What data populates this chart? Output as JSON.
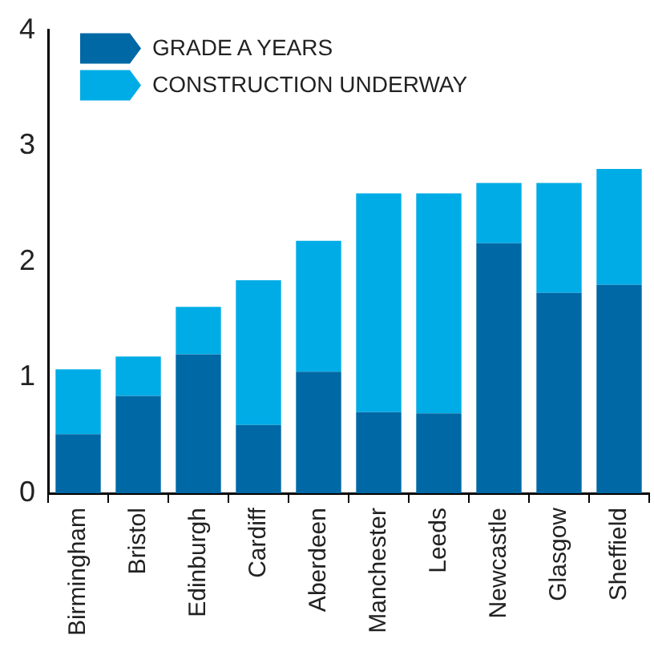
{
  "chart_data": {
    "type": "bar",
    "stacked": true,
    "categories": [
      "Birmingham",
      "Bristol",
      "Edinburgh",
      "Cardiff",
      "Aberdeen",
      "Manchester",
      "Leeds",
      "Newcastle",
      "Glasgow",
      "Sheffield"
    ],
    "series": [
      {
        "name": "GRADE A YEARS",
        "color": "#0068a5",
        "values": [
          0.51,
          0.84,
          1.2,
          0.59,
          1.05,
          0.7,
          0.69,
          2.16,
          1.73,
          1.8
        ]
      },
      {
        "name": "CONSTRUCTION UNDERWAY",
        "color": "#00ace6",
        "values": [
          0.56,
          0.34,
          0.41,
          1.25,
          1.13,
          1.89,
          1.9,
          0.52,
          0.95,
          1.0
        ]
      }
    ],
    "ylim": [
      0,
      4
    ],
    "yticks": [
      0,
      1,
      2,
      3,
      4
    ],
    "grid": false,
    "legend": "top left"
  }
}
